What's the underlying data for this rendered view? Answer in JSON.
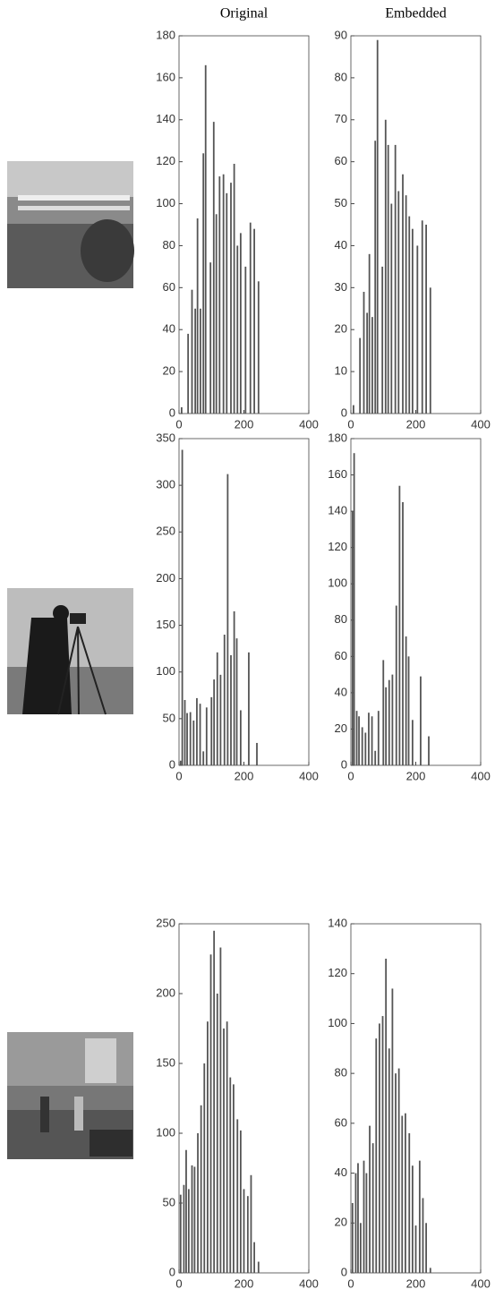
{
  "chart_data": [
    {
      "type": "bar",
      "title": "Original",
      "color": "#555555",
      "x": [
        8,
        28,
        40,
        50,
        57,
        66,
        75,
        82,
        97,
        107,
        115,
        125,
        137,
        147,
        160,
        170,
        180,
        190,
        205,
        220,
        232,
        245
      ],
      "values": [
        3,
        38,
        59,
        50,
        93,
        50,
        124,
        166,
        72,
        139,
        95,
        113,
        114,
        105,
        110,
        119,
        80,
        86,
        70,
        91,
        88,
        63
      ],
      "xlim": [
        0,
        400
      ],
      "xticks": [
        0,
        200,
        400
      ],
      "ylim": [
        0,
        180
      ],
      "yticks": [
        0,
        20,
        40,
        60,
        80,
        100,
        120,
        140,
        160,
        180
      ]
    },
    {
      "type": "bar",
      "title": "Embedded",
      "color": "#555555",
      "x": [
        8,
        28,
        40,
        50,
        57,
        66,
        75,
        82,
        97,
        107,
        115,
        125,
        137,
        147,
        160,
        170,
        180,
        190,
        205,
        220,
        232,
        245
      ],
      "values": [
        2,
        18,
        29,
        24,
        38,
        23,
        65,
        89,
        35,
        70,
        64,
        50,
        64,
        53,
        57,
        52,
        47,
        44,
        40,
        46,
        45,
        30
      ],
      "xlim": [
        0,
        400
      ],
      "xticks": [
        0,
        200,
        400
      ],
      "ylim": [
        0,
        90
      ],
      "yticks": [
        0,
        10,
        20,
        30,
        40,
        50,
        60,
        70,
        80,
        90
      ]
    },
    {
      "type": "bar",
      "color": "#555555",
      "x": [
        5,
        10,
        18,
        25,
        35,
        45,
        55,
        65,
        75,
        85,
        100,
        108,
        118,
        128,
        140,
        150,
        160,
        170,
        178,
        190,
        215,
        240
      ],
      "values": [
        5,
        338,
        70,
        56,
        57,
        48,
        72,
        66,
        15,
        62,
        73,
        92,
        121,
        97,
        140,
        312,
        118,
        165,
        136,
        59,
        121,
        24
      ],
      "xlim": [
        0,
        400
      ],
      "xticks": [
        0,
        200,
        400
      ],
      "ylim": [
        0,
        350
      ],
      "yticks": [
        0,
        50,
        100,
        150,
        200,
        250,
        300,
        350
      ]
    },
    {
      "type": "bar",
      "color": "#555555",
      "x": [
        5,
        10,
        18,
        25,
        35,
        45,
        55,
        65,
        75,
        85,
        100,
        108,
        118,
        128,
        140,
        150,
        160,
        170,
        178,
        190,
        215,
        240
      ],
      "values": [
        140,
        172,
        30,
        27,
        21,
        18,
        29,
        27,
        8,
        30,
        58,
        43,
        47,
        50,
        88,
        154,
        145,
        71,
        60,
        25,
        49,
        16
      ],
      "xlim": [
        0,
        400
      ],
      "xticks": [
        0,
        200,
        400
      ],
      "ylim": [
        0,
        180
      ],
      "yticks": [
        0,
        20,
        40,
        60,
        80,
        100,
        120,
        140,
        160,
        180
      ]
    },
    {
      "type": "bar",
      "color": "#555555",
      "x": [
        5,
        15,
        22,
        30,
        40,
        48,
        58,
        68,
        78,
        88,
        98,
        108,
        118,
        128,
        138,
        148,
        158,
        168,
        180,
        190,
        200,
        212,
        222,
        232,
        245
      ],
      "values": [
        56,
        63,
        88,
        60,
        77,
        76,
        100,
        120,
        150,
        180,
        228,
        245,
        200,
        233,
        175,
        180,
        140,
        135,
        110,
        102,
        60,
        55,
        70,
        22,
        8
      ],
      "xlim": [
        0,
        400
      ],
      "xticks": [
        0,
        200,
        400
      ],
      "ylim": [
        0,
        250
      ],
      "yticks": [
        0,
        50,
        100,
        150,
        200,
        250
      ]
    },
    {
      "type": "bar",
      "color": "#555555",
      "x": [
        5,
        15,
        22,
        30,
        40,
        48,
        58,
        68,
        78,
        88,
        98,
        108,
        118,
        128,
        138,
        148,
        158,
        168,
        180,
        190,
        200,
        212,
        222,
        232,
        245
      ],
      "values": [
        28,
        40,
        44,
        20,
        45,
        40,
        59,
        52,
        94,
        100,
        103,
        126,
        90,
        114,
        80,
        82,
        63,
        64,
        56,
        43,
        19,
        45,
        30,
        20,
        2
      ],
      "xlim": [
        0,
        400
      ],
      "xticks": [
        0,
        200,
        400
      ],
      "ylim": [
        0,
        140
      ],
      "yticks": [
        0,
        20,
        40,
        60,
        80,
        100,
        120,
        140
      ]
    }
  ]
}
